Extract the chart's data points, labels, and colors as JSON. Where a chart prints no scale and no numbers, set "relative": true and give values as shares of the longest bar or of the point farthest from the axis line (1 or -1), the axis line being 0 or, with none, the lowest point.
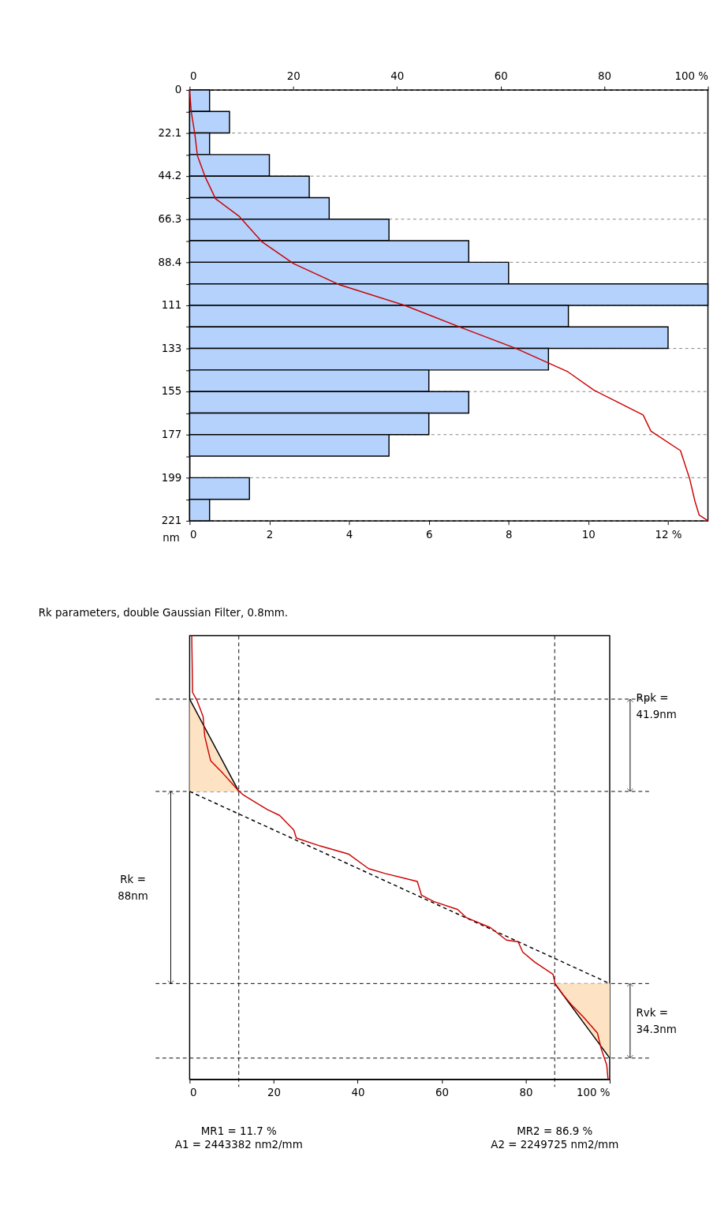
{
  "chart_data": [
    {
      "type": "histogram",
      "orientation": "horizontal",
      "color": "#b4d2fc",
      "bins": [
        0,
        11.05,
        22.1,
        33.15,
        44.2,
        55.25,
        66.3,
        77.35,
        88.4,
        99.45,
        110.5,
        121.55,
        132.6,
        143.65,
        154.7,
        165.75,
        176.8,
        187.85,
        198.9,
        209.95,
        221
      ],
      "values": [
        0.5,
        1,
        0.5,
        2,
        3,
        3.5,
        5,
        7,
        8,
        13,
        9.5,
        12,
        9,
        6,
        7,
        6,
        5,
        0,
        1.5,
        0.5
      ],
      "xlim": [
        0,
        13
      ],
      "xticks": [
        0,
        2,
        4,
        6,
        8,
        10,
        {
          "value": 12,
          "label": "12 %"
        }
      ],
      "x2lim": [
        0,
        100
      ],
      "x2ticks": [
        0,
        20,
        40,
        60,
        80,
        {
          "value": 100,
          "label": "100 %"
        }
      ],
      "ylim": [
        221,
        0
      ],
      "yticks": [
        0,
        {
          "value": 11.05,
          "label": null
        },
        22.1,
        {
          "value": 33.15,
          "label": null
        },
        44.2,
        {
          "value": 55.25,
          "label": null
        },
        66.3,
        {
          "value": 77.35,
          "label": null
        },
        88.4,
        {
          "value": 99.45,
          "label": null
        },
        {
          "value": 110.5,
          "label": "111"
        },
        {
          "value": 121.55,
          "label": null
        },
        {
          "value": 132.6,
          "label": "133"
        },
        {
          "value": 143.65,
          "label": null
        },
        {
          "value": 154.7,
          "label": "155"
        },
        {
          "value": 165.75,
          "label": null
        },
        {
          "value": 176.8,
          "label": "177"
        },
        {
          "value": 187.85,
          "label": null
        },
        {
          "value": 198.9,
          "label": "199"
        },
        {
          "value": 209.95,
          "label": null
        },
        221
      ],
      "ylabel": "nm",
      "grid": "y",
      "series": [
        {
          "type": "line",
          "axis": "x2",
          "color": "#cc0000",
          "x": [
            0,
            11,
            22.5,
            33.7,
            44.6,
            55.8,
            64.7,
            78,
            89,
            100,
            110.5,
            122,
            132.6,
            144.6,
            154,
            166.7,
            175,
            185,
            199.7,
            211,
            218,
            221
          ],
          "values": [
            0,
            0.3,
            1,
            1.5,
            3,
            5,
            9.5,
            14,
            20,
            29,
            41.5,
            52.5,
            63,
            73,
            78,
            87.5,
            89,
            94.7,
            96.5,
            97.5,
            98.3,
            100
          ]
        }
      ]
    },
    {
      "type": "line",
      "relative": true,
      "title": "Rk parameters, double Gaussian Filter, 0.8mm.",
      "xlim": [
        0,
        100
      ],
      "xticks": [
        0,
        20,
        40,
        60,
        80,
        {
          "value": 100,
          "label": "100 %"
        }
      ],
      "series": [
        {
          "type": "line",
          "color": "#000000",
          "x": [
            0,
            11.7
          ],
          "values": [
            0.857,
            0.649
          ],
          "lower": [
            0.649,
            0.649
          ],
          "upper": [
            0.857,
            0.649
          ]
        },
        {
          "type": "line",
          "color": "#000000",
          "x": [
            86.9,
            100
          ],
          "values": [
            0.216,
            0.048
          ],
          "lower": [
            0.216,
            0.048
          ],
          "upper": [
            0.216,
            0.216
          ]
        },
        {
          "type": "line",
          "color": "#000000",
          "line_style": "dashed",
          "x": [
            0,
            100
          ],
          "values": [
            0.649,
            0.216
          ]
        },
        {
          "type": "line",
          "color": "#cc0000",
          "x": [
            0.5,
            0.7,
            1.7,
            3.2,
            3.6,
            5.0,
            7.9,
            11.3,
            12.8,
            18.5,
            21.4,
            24.8,
            25.4,
            31.1,
            37.8,
            42.6,
            46.5,
            54.2,
            55.2,
            58.1,
            63.8,
            65.8,
            71.6,
            75.4,
            78.2,
            79.3,
            82.2,
            86.5,
            87.0,
            88.9,
            90.8,
            93.7,
            97.1,
            98.0,
            99.3,
            99.6
          ],
          "values": [
            1.0,
            0.872,
            0.855,
            0.818,
            0.773,
            0.718,
            0.69,
            0.654,
            0.641,
            0.608,
            0.595,
            0.562,
            0.544,
            0.526,
            0.508,
            0.475,
            0.464,
            0.446,
            0.415,
            0.401,
            0.383,
            0.365,
            0.342,
            0.314,
            0.31,
            0.287,
            0.264,
            0.237,
            0.216,
            0.191,
            0.169,
            0.141,
            0.104,
            0.068,
            0.032,
            0.0
          ]
        }
      ],
      "ref_lines": [
        {
          "axis": "y",
          "value": 0.857,
          "color": "#000000",
          "line_style": "dashed"
        },
        {
          "axis": "y",
          "value": 0.649,
          "color": "#000000",
          "line_style": "dashed"
        },
        {
          "axis": "y",
          "value": 0.216,
          "color": "#000000",
          "line_style": "dashed"
        },
        {
          "axis": "y",
          "value": 0.048,
          "color": "#000000",
          "line_style": "dashed"
        },
        {
          "axis": "x",
          "value": 11.7,
          "color": "#000000",
          "line_style": "dashed"
        },
        {
          "axis": "x",
          "value": 86.9,
          "color": "#000000",
          "line_style": "dashed"
        }
      ],
      "annotations": [
        "Rpk =\n41.9nm",
        "Rk =\n88nm",
        "Rvk =\n34.3nm",
        "MR1 = 11.7 %\nA1 = 2443382 nm2/mm",
        "MR2 = 86.9 %\nA2 = 2249725 nm2/mm"
      ]
    }
  ]
}
